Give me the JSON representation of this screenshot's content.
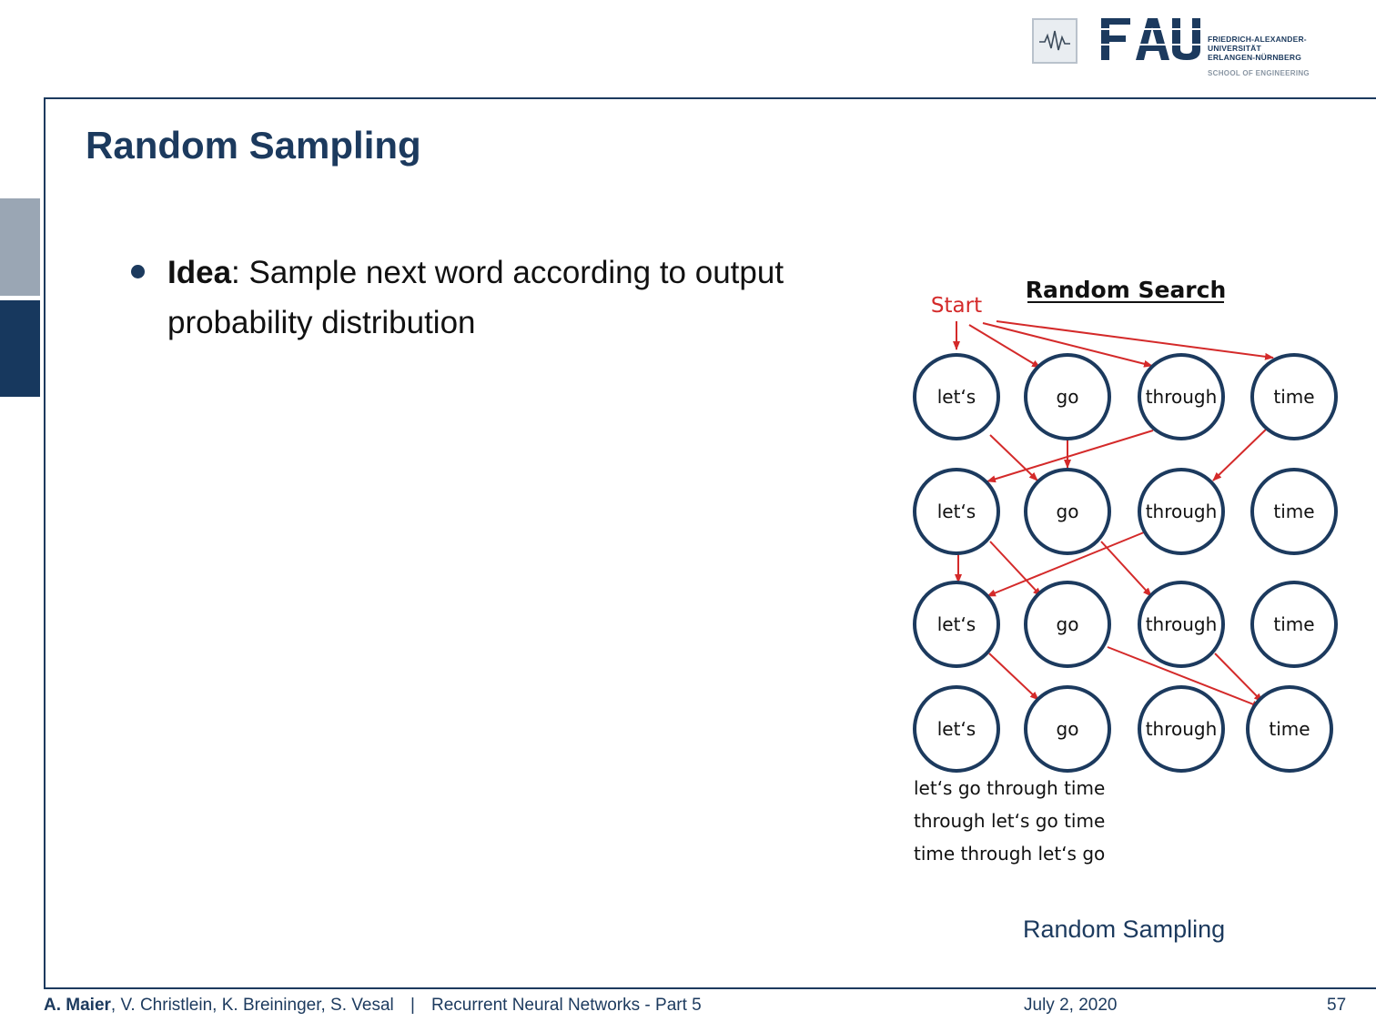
{
  "header": {
    "institution_lines": [
      "FRIEDRICH-ALEXANDER-",
      "UNIVERSITÄT",
      "ERLANGEN-NÜRNBERG"
    ],
    "school": "SCHOOL OF ENGINEERING",
    "logo_text": "FAU"
  },
  "slide": {
    "title": "Random Sampling",
    "bullet": {
      "term": "Idea",
      "text": ": Sample next word according to output probability distribution"
    }
  },
  "diagram": {
    "title": "Random Search",
    "start_label": "Start",
    "rows": [
      [
        "let‘s",
        "go",
        "through",
        "time"
      ],
      [
        "let‘s",
        "go",
        "through",
        "time"
      ],
      [
        "let‘s",
        "go",
        "through",
        "time"
      ],
      [
        "let‘s",
        "go",
        "through",
        "time"
      ]
    ],
    "sequences": [
      "let‘s go through time",
      "through let‘s go time",
      "time through let‘s go"
    ],
    "caption": "Random Sampling",
    "colors": {
      "arrow": "#d42a2a",
      "node_border": "#1c3a5e",
      "start": "#d42a2a"
    }
  },
  "footer": {
    "lead_author": "A. Maier",
    "coauthors": ", V. Christlein, K. Breininger, S. Vesal",
    "separator": "|",
    "lecture": "Recurrent Neural Networks - Part 5",
    "date": "July 2, 2020",
    "page": "57"
  }
}
